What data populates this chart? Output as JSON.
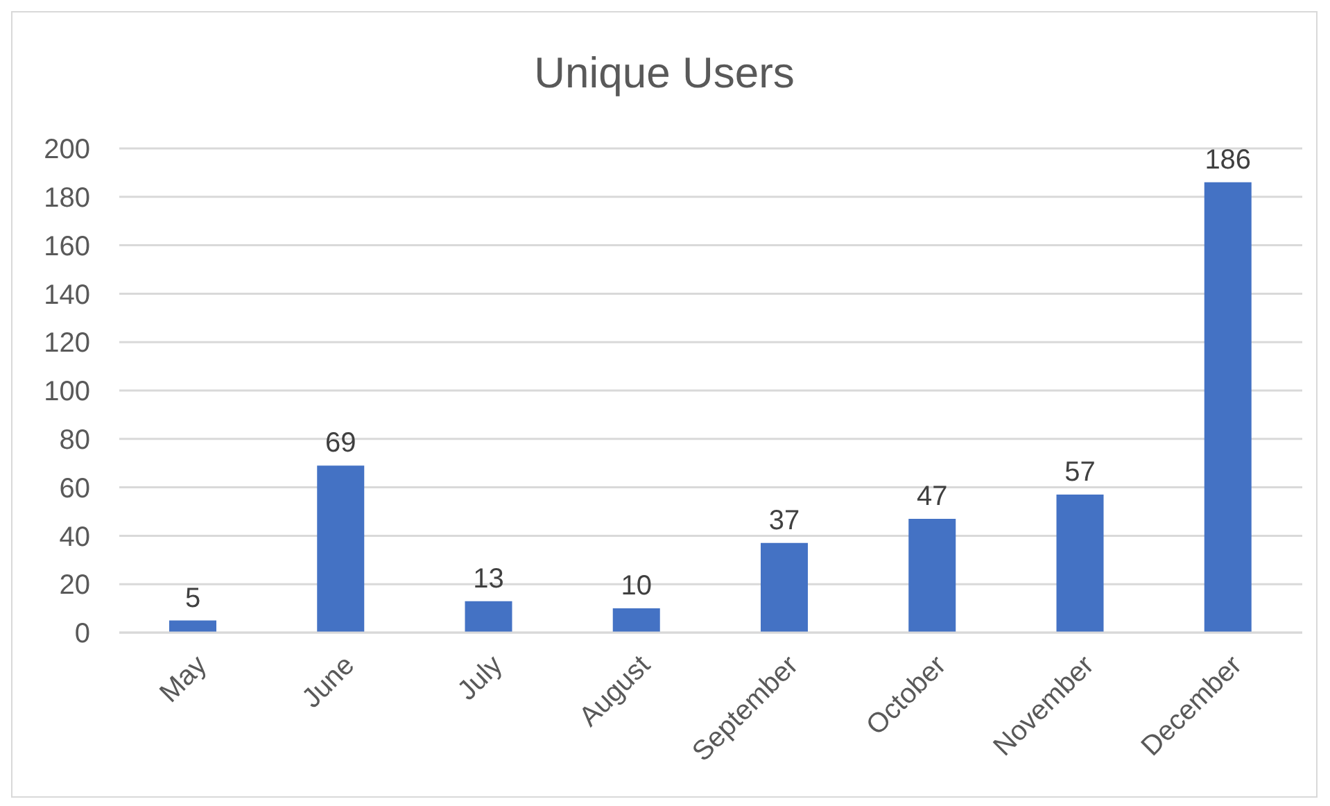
{
  "chart_data": {
    "type": "bar",
    "title": "Unique Users",
    "categories": [
      "May",
      "June",
      "July",
      "August",
      "September",
      "October",
      "November",
      "December"
    ],
    "values": [
      5,
      69,
      13,
      10,
      37,
      47,
      57,
      186
    ],
    "color": "#4472c4",
    "ylim": [
      0,
      200
    ],
    "yticks": [
      0,
      20,
      40,
      60,
      80,
      100,
      120,
      140,
      160,
      180,
      200
    ],
    "grid": "y",
    "data_labels": true
  }
}
